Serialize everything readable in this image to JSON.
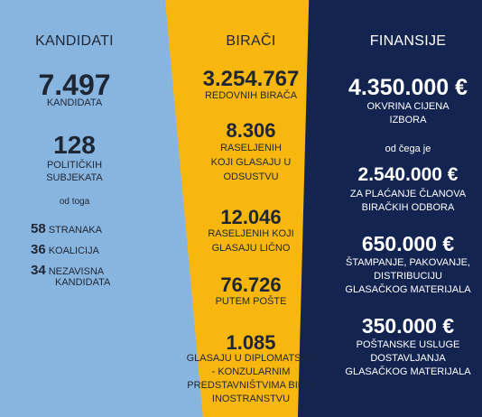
{
  "kandidati": {
    "title": "KANDIDATI",
    "total_value": "7.497",
    "total_label": "KANDIDATA",
    "subjects_value": "128",
    "subjects_label_1": "POLITIČKIH",
    "subjects_label_2": "SUBJEKATA",
    "of_which": "od toga",
    "parties_value": "58",
    "parties_label": "STRANAKA",
    "coalitions_value": "36",
    "coalitions_label": "KOALICIJA",
    "independent_value": "34",
    "independent_label_1": "NEZAVISNA",
    "independent_label_2": "KANDIDATA"
  },
  "biraci": {
    "title": "BIRAČI",
    "regular_value": "3.254.767",
    "regular_label": "REDOVNIH BIRAČA",
    "displaced_absent_value": "8.306",
    "displaced_absent_label_1": "RASELJENIH",
    "displaced_absent_label_2": "KOJI GLASAJU U",
    "displaced_absent_label_3": "ODSUSTVU",
    "displaced_person_value": "12.046",
    "displaced_person_label_1": "RASELJENIH KOJI",
    "displaced_person_label_2": "GLASAJU LIČNO",
    "post_value": "76.726",
    "post_label": "PUTEM POŠTE",
    "abroad_value": "1.085",
    "abroad_label_1": "GLASAJU U DIPLOMATSKO",
    "abroad_label_2": "- KONZULARNIM",
    "abroad_label_3": "PREDSTAVNIŠTVIMA BiH U",
    "abroad_label_4": "INOSTRANSTVU"
  },
  "finansije": {
    "title": "FINANSIJE",
    "budget_value": "4.350.000 €",
    "budget_label_1": "OKVRINA CIJENA",
    "budget_label_2": "IZBORA",
    "of_which": "od čega je",
    "committees_value": "2.540.000 €",
    "committees_label_1": "za PLAĆANJE ČLANOVA",
    "committees_label_2": "BIRAČKIH ODBORA",
    "printing_value": "650.000 €",
    "printing_label_1": "ŠTAMPANJE, PAKOVANJE,",
    "printing_label_2": "DISTRIBUCIJU",
    "printing_label_3": "GLASAČKOG MATERIJALA",
    "postal_value": "350.000 €",
    "postal_label_1": "POŠTANSKE USLUGE",
    "postal_label_2": "DOSTAVLJANJA",
    "postal_label_3": "GLASAČKOG MATERIJALA"
  },
  "colors": {
    "left_panel": "#88b5e0",
    "middle_panel": "#f7b70f",
    "right_panel": "#132450"
  }
}
